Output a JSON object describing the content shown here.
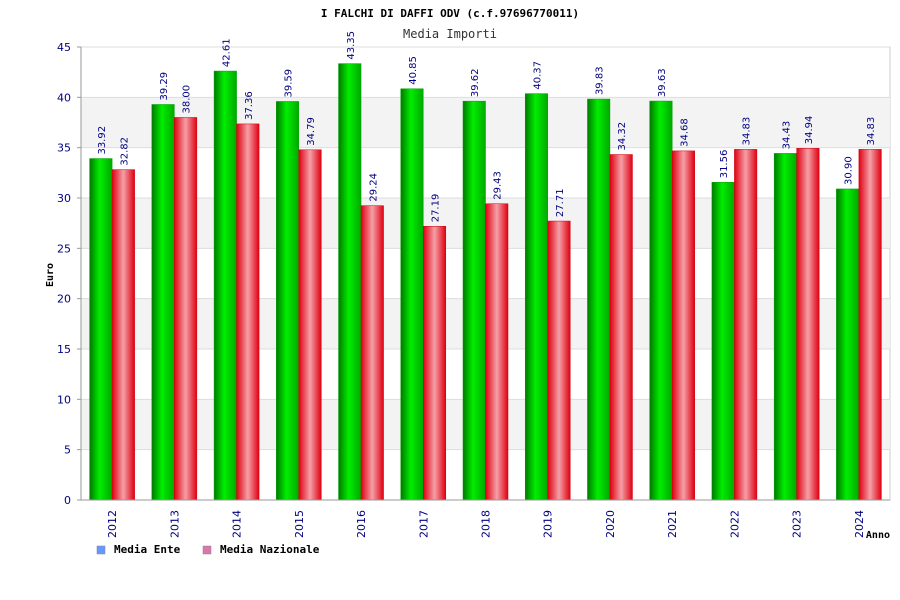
{
  "chart_data": {
    "type": "bar",
    "title": "I FALCHI DI DAFFI ODV (c.f.97696770011)",
    "subtitle": "Media Importi",
    "xlabel": "Anno",
    "ylabel": "Euro",
    "ylim": [
      0,
      45
    ],
    "yticks": [
      0,
      5,
      10,
      15,
      20,
      25,
      30,
      35,
      40,
      45
    ],
    "grid": true,
    "legend_position": "bottom-left",
    "categories": [
      "2012",
      "2013",
      "2014",
      "2015",
      "2016",
      "2017",
      "2018",
      "2019",
      "2020",
      "2021",
      "2022",
      "2023",
      "2024"
    ],
    "series": [
      {
        "name": "Media Ente",
        "color": "#00c000",
        "legend_color": "#6699ff",
        "values": [
          33.92,
          39.29,
          42.61,
          39.59,
          43.35,
          40.85,
          39.62,
          40.37,
          39.83,
          39.63,
          31.56,
          34.43,
          30.9
        ],
        "labels": [
          "33.92",
          "39.29",
          "42.61",
          "39.59",
          "43.35",
          "40.85",
          "39.62",
          "40.37",
          "39.83",
          "39.63",
          "31.56",
          "34.43",
          "30.90"
        ]
      },
      {
        "name": "Media Nazionale",
        "color": "#ee1122",
        "legend_color": "#dd77aa",
        "values": [
          32.82,
          38.0,
          37.36,
          34.79,
          29.24,
          27.19,
          29.43,
          27.71,
          34.32,
          34.68,
          34.83,
          34.94,
          34.83
        ],
        "labels": [
          "32.82",
          "38.00",
          "37.36",
          "34.79",
          "29.24",
          "27.19",
          "29.43",
          "27.71",
          "34.32",
          "34.68",
          "34.83",
          "34.94",
          "34.83"
        ]
      }
    ]
  }
}
